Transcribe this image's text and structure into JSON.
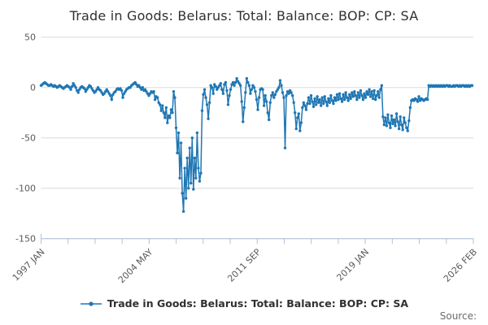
{
  "title": "Trade in Goods: Belarus: Total: Balance: BOP: CP: SA",
  "legend": {
    "label": "Trade in Goods: Belarus: Total: Balance: BOP: CP: SA"
  },
  "source": {
    "label": "Source:"
  },
  "colors": {
    "series": "#1f77b4",
    "grid": "#dcdcdc",
    "axis": "#afc2da",
    "tick_label": "#5a5a5a",
    "title_text": "#303030",
    "source_text": "#6b6b6b"
  },
  "chart_data": {
    "type": "line",
    "title": "Trade in Goods: Belarus: Total: Balance: BOP: CP: SA",
    "series_name": "Trade in Goods: Belarus: Total: Balance: BOP: CP: SA",
    "frequency": "monthly",
    "x_start": "1997 JAN",
    "x_end": "2026 JAN",
    "x_tick_labels": [
      "1997 JAN",
      "2004 MAY",
      "2011 SEP",
      "2019 JAN",
      "2026 FEB"
    ],
    "x_tick_months": [
      0,
      88,
      176,
      264,
      349
    ],
    "minor_tick_count": 17,
    "y_ticks": [
      50,
      0,
      -50,
      -100,
      -150
    ],
    "ylim": [
      -150,
      50
    ],
    "xlabel": "",
    "ylabel": "",
    "grid": "horizontal",
    "legend_position": "bottom-center",
    "marker": "circle",
    "values": [
      2,
      3,
      4,
      5,
      4,
      3,
      2,
      2,
      3,
      2,
      1,
      2,
      1,
      0,
      1,
      2,
      1,
      0,
      -1,
      0,
      1,
      2,
      1,
      0,
      -2,
      1,
      4,
      2,
      0,
      -3,
      -5,
      -2,
      0,
      1,
      0,
      -1,
      -4,
      -2,
      0,
      2,
      1,
      -1,
      -3,
      -5,
      -4,
      -2,
      0,
      -2,
      -3,
      -5,
      -7,
      -6,
      -4,
      -2,
      -4,
      -6,
      -8,
      -12,
      -7,
      -5,
      -4,
      -2,
      -1,
      -2,
      -1,
      -3,
      -10,
      -6,
      -4,
      -2,
      -1,
      0,
      0,
      2,
      3,
      4,
      5,
      3,
      1,
      2,
      0,
      -2,
      0,
      -3,
      -2,
      -4,
      -6,
      -8,
      -6,
      -4,
      -5,
      -4,
      -12,
      -9,
      -10,
      -15,
      -17,
      -23,
      -18,
      -25,
      -30,
      -20,
      -35,
      -28,
      -30,
      -22,
      -25,
      -4,
      -10,
      -40,
      -65,
      -45,
      -90,
      -55,
      -105,
      -123,
      -80,
      -110,
      -70,
      -100,
      -60,
      -95,
      -50,
      -101,
      -70,
      -90,
      -45,
      -80,
      -93,
      -85,
      -23,
      -7,
      -2,
      -10,
      -17,
      -31,
      -15,
      2,
      0,
      -6,
      3,
      1,
      -2,
      0,
      2,
      4,
      -2,
      -6,
      3,
      5,
      -3,
      -17,
      -8,
      -2,
      3,
      5,
      2,
      5,
      9,
      6,
      4,
      2,
      -14,
      -34,
      -20,
      -5,
      9,
      5,
      2,
      -6,
      -2,
      2,
      0,
      -4,
      -12,
      -22,
      -10,
      -2,
      -1,
      -2,
      -18,
      -8,
      -14,
      -25,
      -32,
      -15,
      -8,
      -5,
      -10,
      -7,
      -4,
      -2,
      0,
      7,
      2,
      -5,
      -10,
      -60,
      -8,
      -4,
      -6,
      -3,
      -5,
      -8,
      -15,
      -25,
      -41,
      -30,
      -26,
      -43,
      -35,
      -20,
      -15,
      -18,
      -22,
      -16,
      -10,
      -16,
      -8,
      -14,
      -19,
      -11,
      -17,
      -9,
      -15,
      -12,
      -18,
      -10,
      -16,
      -9,
      -14,
      -18,
      -11,
      -15,
      -8,
      -13,
      -16,
      -10,
      -13,
      -7,
      -12,
      -6,
      -11,
      -14,
      -7,
      -12,
      -5,
      -10,
      -13,
      -7,
      -11,
      -5,
      -9,
      -4,
      -8,
      -12,
      -5,
      -10,
      -3,
      -8,
      -12,
      -6,
      -10,
      -4,
      -7,
      -2,
      -9,
      -4,
      -11,
      -3,
      -12,
      -8,
      -4,
      -10,
      -2,
      2,
      -29,
      -37,
      -30,
      -38,
      -27,
      -35,
      -40,
      -28,
      -36,
      -32,
      -38,
      -26,
      -34,
      -41,
      -29,
      -37,
      -42,
      -30,
      -35,
      -40,
      -43,
      -33,
      -20,
      -13,
      -12,
      -13,
      -11,
      -12,
      -14,
      -9,
      -13,
      -11,
      -12,
      -13,
      -12,
      -11,
      -12,
      2,
      1,
      2,
      1,
      2,
      1,
      2,
      1,
      2,
      1,
      2,
      1,
      2,
      1,
      2,
      2,
      1,
      2,
      1,
      1,
      2,
      1,
      2,
      2,
      1,
      2,
      1,
      2,
      2,
      1,
      2,
      1,
      2,
      1,
      2,
      2
    ]
  }
}
